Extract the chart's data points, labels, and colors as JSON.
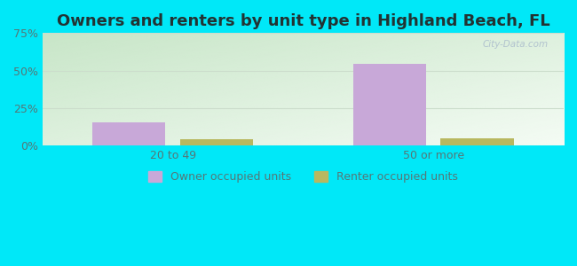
{
  "title": "Owners and renters by unit type in Highland Beach, FL",
  "categories": [
    "20 to 49",
    "50 or more"
  ],
  "owner_values": [
    15.5,
    54.5
  ],
  "renter_values": [
    4.0,
    5.0
  ],
  "owner_color": "#c8a8d8",
  "renter_color": "#b8b860",
  "ylim": [
    0,
    75
  ],
  "yticks": [
    0,
    25,
    50,
    75
  ],
  "yticklabels": [
    "0%",
    "25%",
    "50%",
    "75%"
  ],
  "bar_width": 0.28,
  "outer_bg": "#00e8f8",
  "title_fontsize": 13,
  "tick_fontsize": 9,
  "legend_fontsize": 9,
  "tick_color": "#557777",
  "watermark": "City-Data.com",
  "grid_color": "#ccddcc"
}
